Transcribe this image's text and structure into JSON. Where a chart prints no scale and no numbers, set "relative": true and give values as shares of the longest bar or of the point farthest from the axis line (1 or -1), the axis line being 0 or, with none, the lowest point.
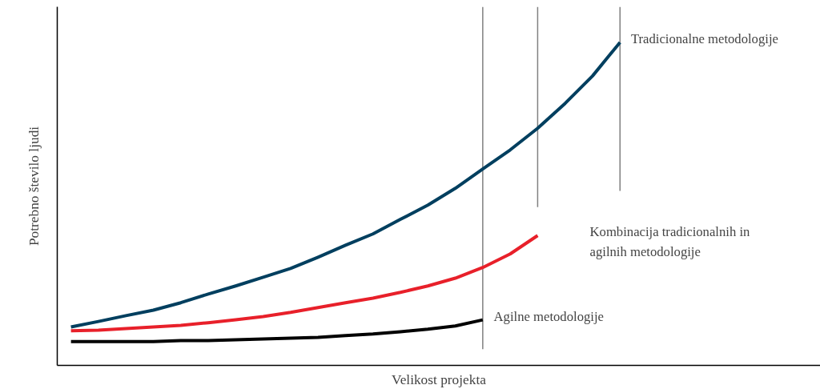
{
  "chart_data": {
    "type": "line",
    "relative": true,
    "xlabel": "Velikost projekta",
    "ylabel": "Potrebno število ljudi",
    "grid": false,
    "legend": false,
    "tick_labels": false,
    "line_style": "solid",
    "marker": "none",
    "categories": [
      null,
      null,
      null,
      null,
      null,
      null,
      null,
      null,
      null,
      null,
      null,
      null,
      null,
      null,
      null,
      null,
      null,
      null,
      null,
      null,
      null
    ],
    "series": [
      {
        "name": "Tradicionalne metodologije",
        "color": "#003f5f",
        "values": [
          0.119,
          0.136,
          0.154,
          0.171,
          0.194,
          0.221,
          0.246,
          0.273,
          0.3,
          0.335,
          0.372,
          0.407,
          0.452,
          0.496,
          0.548,
          0.608,
          0.667,
          0.734,
          0.811,
          0.896,
          1.0
        ]
      },
      {
        "name": "Kombinacija tradicionalnih in\nagilnih metodologije",
        "color": "#e8202a",
        "values": [
          0.107,
          0.109,
          0.114,
          0.119,
          0.124,
          0.132,
          0.141,
          0.151,
          0.164,
          0.179,
          0.194,
          0.208,
          0.226,
          0.246,
          0.27,
          0.303,
          0.345,
          0.402,
          null,
          null,
          null
        ]
      },
      {
        "name": "Agilne metodologije",
        "color": "#000000",
        "values": [
          0.074,
          0.074,
          0.074,
          0.074,
          0.077,
          0.077,
          0.079,
          0.082,
          0.084,
          0.087,
          0.092,
          0.097,
          0.104,
          0.112,
          0.122,
          0.141,
          null,
          null,
          null,
          null,
          null
        ]
      }
    ]
  }
}
